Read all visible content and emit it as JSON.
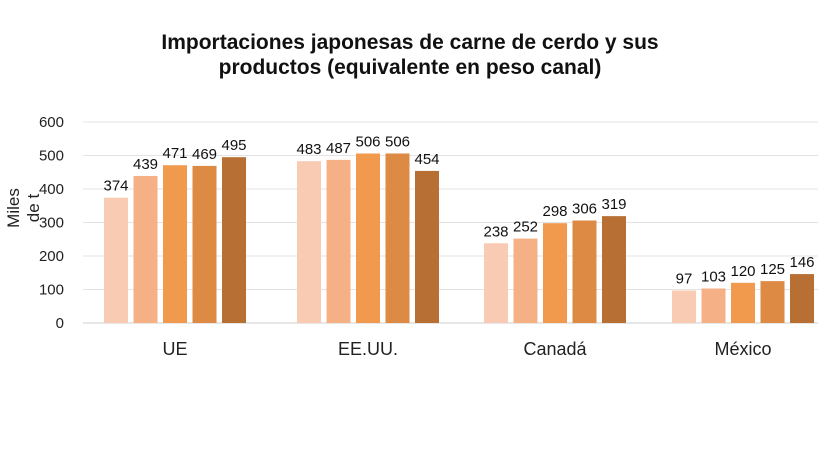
{
  "chart_data": {
    "type": "bar",
    "title_line1": "Importaciones japonesas de carne de cerdo y sus",
    "title_line2": "productos (equivalente en peso canal)",
    "ylabel": "Miles de t",
    "ylim": [
      0,
      600
    ],
    "yticks": [
      0,
      100,
      200,
      300,
      400,
      500,
      600
    ],
    "grid": true,
    "categories": [
      "UE",
      "EE.UU.",
      "Canadá",
      "México"
    ],
    "series": [
      {
        "values": [
          374,
          483,
          238,
          97
        ],
        "color": "#f8cbb2"
      },
      {
        "values": [
          439,
          487,
          252,
          103
        ],
        "color": "#f5b085"
      },
      {
        "values": [
          471,
          506,
          298,
          120
        ],
        "color": "#f19a4d"
      },
      {
        "values": [
          469,
          506,
          306,
          125
        ],
        "color": "#dd8a45"
      },
      {
        "values": [
          495,
          454,
          319,
          146
        ],
        "color": "#b86f33"
      }
    ]
  }
}
